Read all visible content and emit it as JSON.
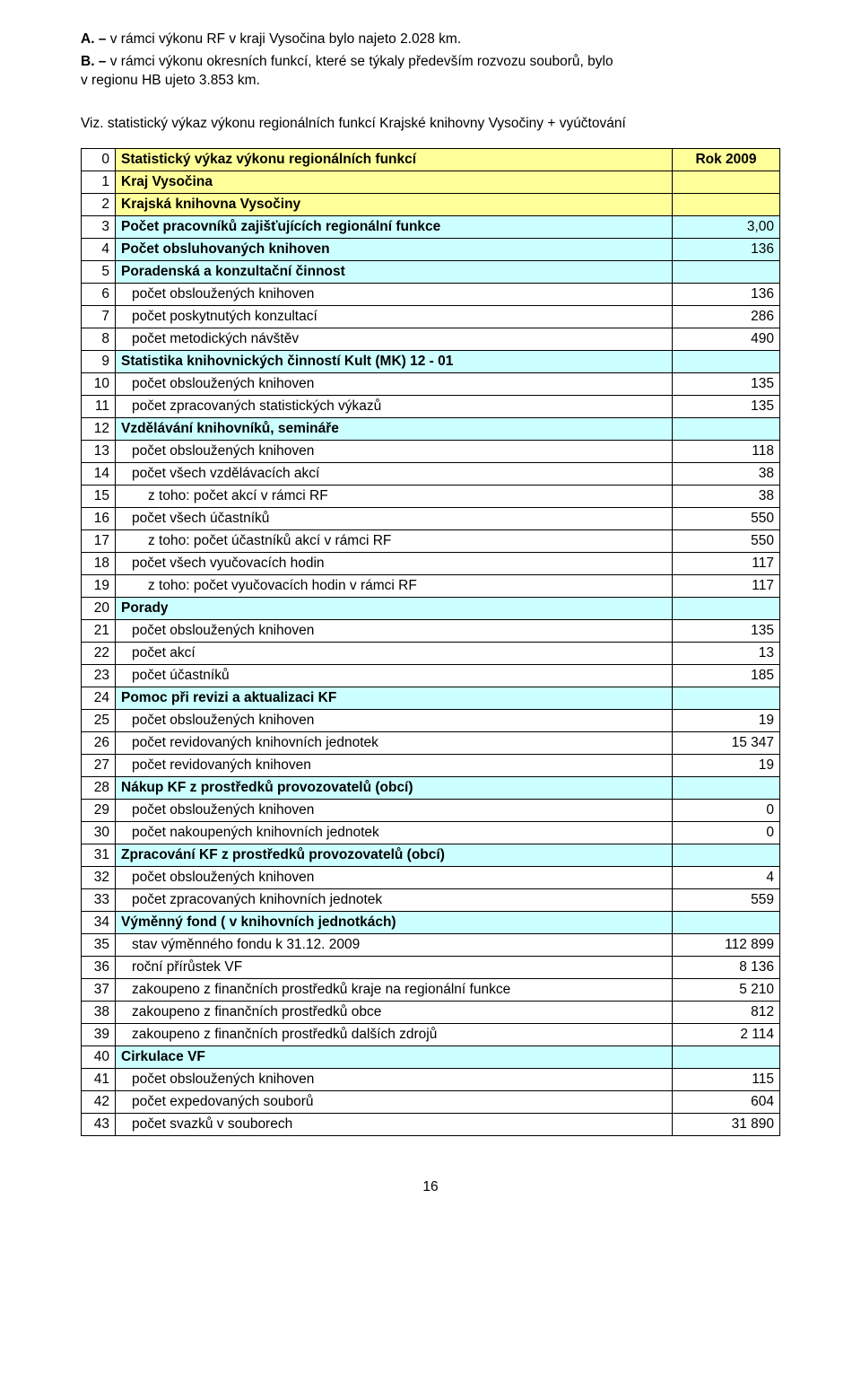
{
  "intro": {
    "a_label": "A. –",
    "a_text": "  v rámci výkonu RF v kraji Vysočina bylo najeto 2.028 km.",
    "b_label": "B. –",
    "b_text_line1": "  v rámci výkonu okresních funkcí, které se týkaly především rozvozu souborů, bylo",
    "b_text_line2": "v regionu HB ujeto 3.853 km."
  },
  "viz": "Viz. statistický výkaz výkonu regionálních funkcí Krajské knihovny Vysočiny + vyúčtování",
  "header": {
    "title": "Statistický výkaz výkonu regionálních funkcí",
    "year": "Rok   2009"
  },
  "rows": [
    {
      "n": "1",
      "label": "Kraj  Vysočina",
      "val": "",
      "bold": true,
      "bg": "yellow",
      "indent": 0
    },
    {
      "n": "2",
      "label": "Krajská knihovna Vysočiny",
      "val": "",
      "bold": true,
      "bg": "yellow",
      "indent": 0
    },
    {
      "n": "3",
      "label": "Počet pracovníků zajišťujících regionální funkce",
      "val": "3,00",
      "bold": true,
      "bg": "cyan",
      "indent": 0
    },
    {
      "n": "4",
      "label": "Počet obsluhovaných knihoven",
      "val": "136",
      "bold": true,
      "bg": "cyan",
      "indent": 0
    },
    {
      "n": "5",
      "label": "Poradenská a konzultační činnost",
      "val": "",
      "bold": true,
      "bg": "cyan",
      "indent": 0
    },
    {
      "n": "6",
      "label": "počet obsloužených knihoven",
      "val": "136",
      "bold": false,
      "bg": "",
      "indent": 1
    },
    {
      "n": "7",
      "label": "počet poskytnutých konzultací",
      "val": "286",
      "bold": false,
      "bg": "",
      "indent": 1
    },
    {
      "n": "8",
      "label": "počet metodických návštěv",
      "val": "490",
      "bold": false,
      "bg": "",
      "indent": 1
    },
    {
      "n": "9",
      "label": "Statistika knihovnických činností Kult (MK) 12 - 01",
      "val": "",
      "bold": true,
      "bg": "cyan",
      "indent": 0
    },
    {
      "n": "10",
      "label": "počet obsloužených knihoven",
      "val": "135",
      "bold": false,
      "bg": "",
      "indent": 1
    },
    {
      "n": "11",
      "label": "počet zpracovaných statistických výkazů",
      "val": "135",
      "bold": false,
      "bg": "",
      "indent": 1
    },
    {
      "n": "12",
      "label": "Vzdělávání knihovníků, semináře",
      "val": "",
      "bold": true,
      "bg": "cyan",
      "indent": 0
    },
    {
      "n": "13",
      "label": "počet obsloužených knihoven",
      "val": "118",
      "bold": false,
      "bg": "",
      "indent": 1
    },
    {
      "n": "14",
      "label": "počet všech vzdělávacích akcí",
      "val": "38",
      "bold": false,
      "bg": "",
      "indent": 1
    },
    {
      "n": "15",
      "label": "z toho: počet akcí v rámci RF",
      "val": "38",
      "bold": false,
      "bg": "",
      "indent": 2
    },
    {
      "n": "16",
      "label": "počet všech účastníků",
      "val": "550",
      "bold": false,
      "bg": "",
      "indent": 1
    },
    {
      "n": "17",
      "label": "z toho: počet účastníků akcí v rámci RF",
      "val": "550",
      "bold": false,
      "bg": "",
      "indent": 2
    },
    {
      "n": "18",
      "label": "počet všech vyučovacích hodin",
      "val": "117",
      "bold": false,
      "bg": "",
      "indent": 1
    },
    {
      "n": "19",
      "label": "z toho: počet vyučovacích hodin v rámci RF",
      "val": "117",
      "bold": false,
      "bg": "",
      "indent": 2
    },
    {
      "n": "20",
      "label": "Porady",
      "val": "",
      "bold": true,
      "bg": "cyan",
      "indent": 0
    },
    {
      "n": "21",
      "label": "počet obsloužených knihoven",
      "val": "135",
      "bold": false,
      "bg": "",
      "indent": 1
    },
    {
      "n": "22",
      "label": "počet akcí",
      "val": "13",
      "bold": false,
      "bg": "",
      "indent": 1
    },
    {
      "n": "23",
      "label": "počet účastníků",
      "val": "185",
      "bold": false,
      "bg": "",
      "indent": 1
    },
    {
      "n": "24",
      "label": "Pomoc při revizi a aktualizaci KF",
      "val": "",
      "bold": true,
      "bg": "cyan",
      "indent": 0
    },
    {
      "n": "25",
      "label": "počet obsloužených knihoven",
      "val": "19",
      "bold": false,
      "bg": "",
      "indent": 1
    },
    {
      "n": "26",
      "label": "počet revidovaných knihovních jednotek",
      "val": "15 347",
      "bold": false,
      "bg": "",
      "indent": 1
    },
    {
      "n": "27",
      "label": "počet revidovaných knihoven",
      "val": "19",
      "bold": false,
      "bg": "",
      "indent": 1
    },
    {
      "n": "28",
      "label": "Nákup KF z prostředků provozovatelů (obcí)",
      "val": "",
      "bold": true,
      "bg": "cyan",
      "indent": 0
    },
    {
      "n": "29",
      "label": "počet obsloužených knihoven",
      "val": "0",
      "bold": false,
      "bg": "",
      "indent": 1
    },
    {
      "n": "30",
      "label": "počet nakoupených knihovních jednotek",
      "val": "0",
      "bold": false,
      "bg": "",
      "indent": 1
    },
    {
      "n": "31",
      "label": "Zpracování KF z prostředků provozovatelů (obcí)",
      "val": "",
      "bold": true,
      "bg": "cyan",
      "indent": 0
    },
    {
      "n": "32",
      "label": "počet obsloužených knihoven",
      "val": "4",
      "bold": false,
      "bg": "",
      "indent": 1
    },
    {
      "n": "33",
      "label": "počet zpracovaných knihovních jednotek",
      "val": "559",
      "bold": false,
      "bg": "",
      "indent": 1
    },
    {
      "n": "34",
      "label": "Výměnný fond ( v knihovních jednotkách)",
      "val": "",
      "bold": true,
      "bg": "cyan",
      "indent": 0
    },
    {
      "n": "35",
      "label": "stav výměnného fondu k 31.12. 2009",
      "val": "112 899",
      "bold": false,
      "bg": "",
      "indent": 1
    },
    {
      "n": "36",
      "label": "roční přírůstek VF",
      "val": "8 136",
      "bold": false,
      "bg": "",
      "indent": 1
    },
    {
      "n": "37",
      "label": "zakoupeno z finančních prostředků kraje na regionální funkce",
      "val": "5 210",
      "bold": false,
      "bg": "",
      "indent": 1
    },
    {
      "n": "38",
      "label": "zakoupeno z finančních prostředků obce",
      "val": "812",
      "bold": false,
      "bg": "",
      "indent": 1
    },
    {
      "n": "39",
      "label": "zakoupeno z finančních prostředků dalších zdrojů",
      "val": "2 114",
      "bold": false,
      "bg": "",
      "indent": 1
    },
    {
      "n": "40",
      "label": "Cirkulace VF",
      "val": "",
      "bold": true,
      "bg": "cyan",
      "indent": 0
    },
    {
      "n": "41",
      "label": "počet obsloužených knihoven",
      "val": "115",
      "bold": false,
      "bg": "",
      "indent": 1
    },
    {
      "n": "42",
      "label": "počet expedovaných souborů",
      "val": "604",
      "bold": false,
      "bg": "",
      "indent": 1
    },
    {
      "n": "43",
      "label": "počet svazků v souborech",
      "val": "31 890",
      "bold": false,
      "bg": "",
      "indent": 1
    }
  ],
  "pageNumber": "16",
  "colors": {
    "yellow": "#ffff99",
    "cyan": "#ccffff",
    "border": "#000000",
    "text": "#000000",
    "background": "#ffffff"
  }
}
